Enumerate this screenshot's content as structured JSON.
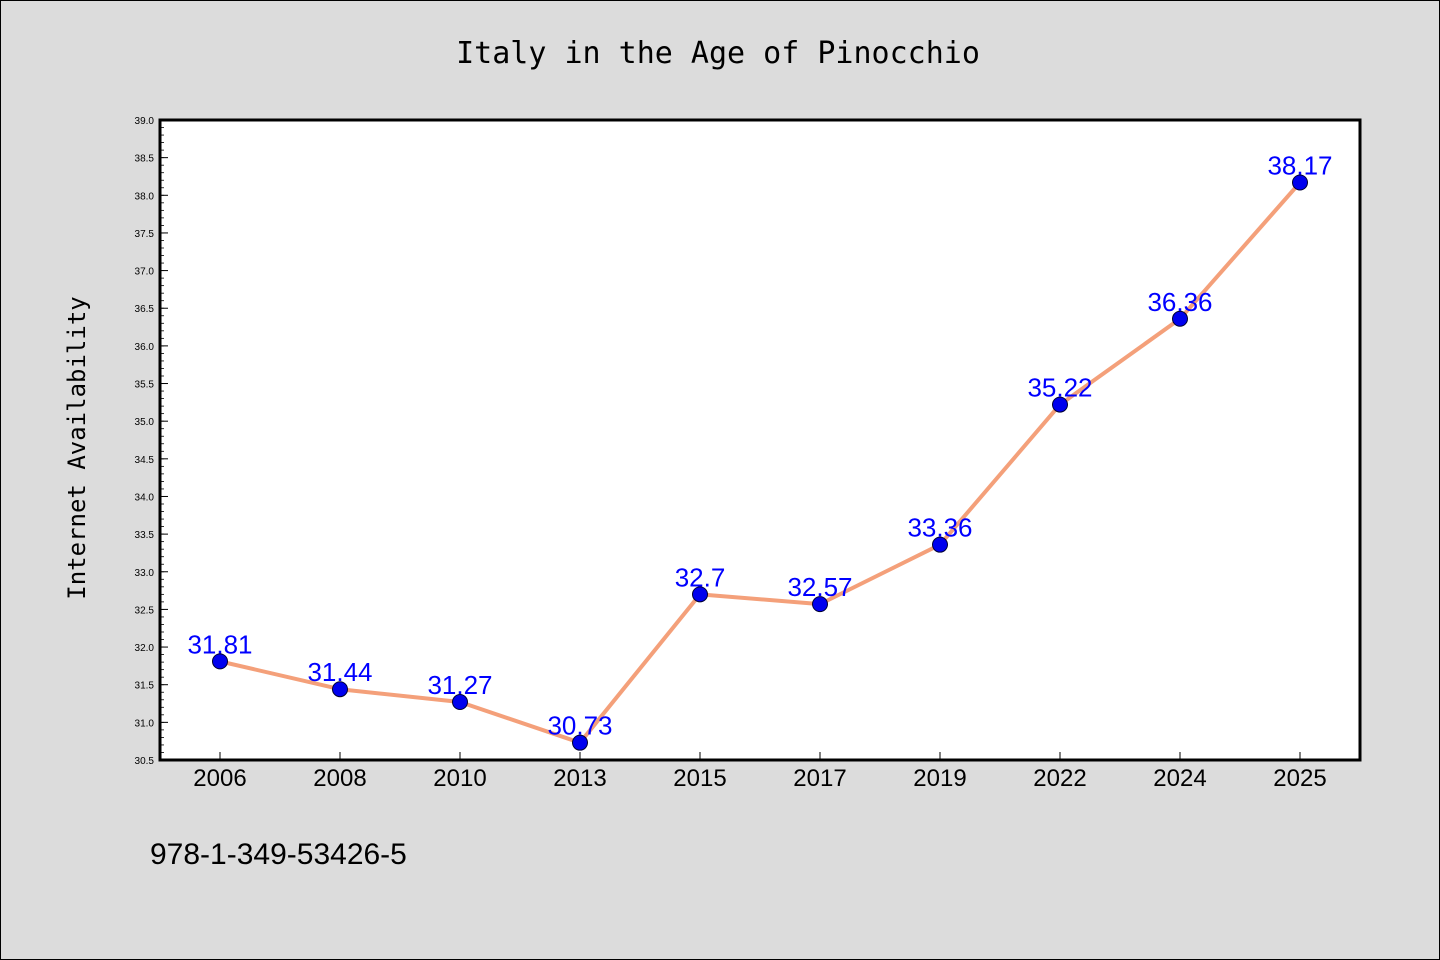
{
  "chart_data": {
    "type": "line",
    "title": "Italy in the Age of Pinocchio",
    "ylabel": "Internet Availability",
    "xlabel": "",
    "categories": [
      "2006",
      "2008",
      "2010",
      "2013",
      "2015",
      "2017",
      "2019",
      "2022",
      "2024",
      "2025"
    ],
    "series": [
      {
        "values": [
          31.81,
          31.44,
          31.27,
          30.73,
          32.7,
          32.57,
          33.36,
          35.22,
          36.36,
          38.17
        ]
      }
    ],
    "data_labels": [
      "31.81",
      "31.44",
      "31.27",
      "30.73",
      "32.7",
      "32.57",
      "33.36",
      "35.22",
      "36.36",
      "38.17"
    ],
    "ylim": [
      30.5,
      39.0
    ],
    "yticks": [
      "30.5",
      "31.0",
      "31.5",
      "32.0",
      "32.5",
      "33.0",
      "33.5",
      "34.0",
      "34.5",
      "35.0",
      "35.5",
      "36.0",
      "36.5",
      "37.0",
      "37.5",
      "38.0",
      "38.5",
      "39.0"
    ],
    "grid": false,
    "legend": "none",
    "colors": {
      "line": "#f4a07a",
      "marker": "#0000ee",
      "label": "#0000ff",
      "background": "#dcdcdc",
      "plot_area": "#ffffff"
    }
  },
  "footer": {
    "isbn": "978-1-349-53426-5"
  }
}
